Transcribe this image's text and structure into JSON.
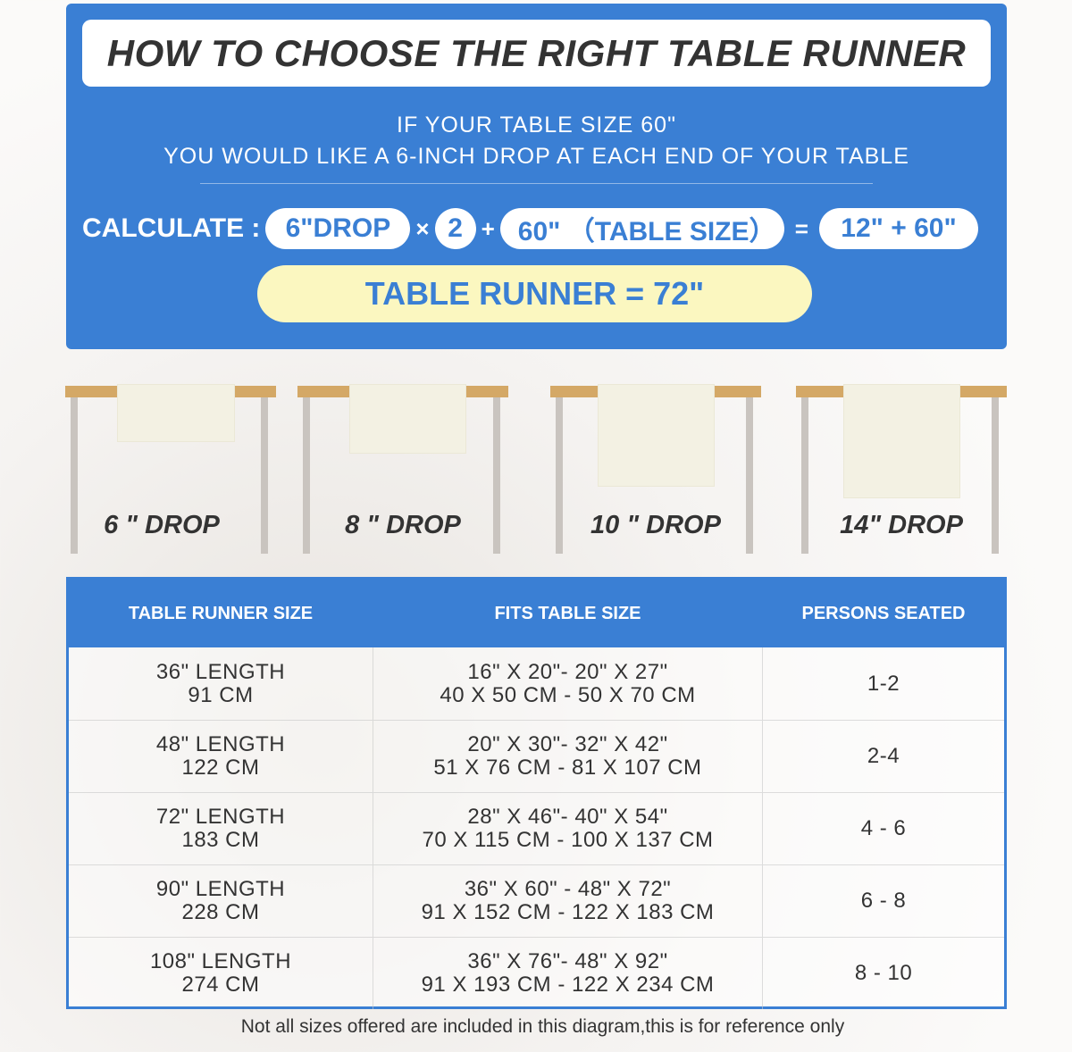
{
  "header": {
    "title": "HOW TO CHOOSE THE RIGHT TABLE RUNNER",
    "line1": "IF YOUR TABLE SIZE 60\"",
    "line2": "YOU WOULD LIKE A 6-INCH DROP AT EACH END OF YOUR TABLE"
  },
  "calc": {
    "label": "CALCULATE :",
    "drop": "6\"DROP",
    "times": "×",
    "multiplier": "2",
    "plus": "+",
    "table": "60\" （TABLE SIZE）",
    "equals": "=",
    "sum": "12\" + 60\"",
    "result": "TABLE RUNNER = 72\""
  },
  "drops": [
    {
      "label": "6 \" DROP"
    },
    {
      "label": "8 \" DROP"
    },
    {
      "label": "10 \" DROP"
    },
    {
      "label": "14\" DROP"
    }
  ],
  "table": {
    "headers": [
      "TABLE RUNNER SIZE",
      "FITS TABLE SIZE",
      "PERSONS SEATED"
    ],
    "rows": [
      {
        "runner": [
          "36\" LENGTH",
          "91 CM"
        ],
        "fits": [
          "16\" X 20\"- 20\" X 27\"",
          "40 X 50 CM - 50 X 70 CM"
        ],
        "persons": "1-2"
      },
      {
        "runner": [
          "48\" LENGTH",
          "122 CM"
        ],
        "fits": [
          "20\" X 30\"- 32\" X 42\"",
          "51 X 76 CM - 81 X 107 CM"
        ],
        "persons": "2-4"
      },
      {
        "runner": [
          "72\" LENGTH",
          "183 CM"
        ],
        "fits": [
          "28\" X 46\"- 40\" X 54\"",
          "70 X 115 CM - 100 X 137 CM"
        ],
        "persons": "4 - 6"
      },
      {
        "runner": [
          "90\" LENGTH",
          "228 CM"
        ],
        "fits": [
          "36\" X 60\" - 48\" X 72\"",
          "91 X 152 CM - 122 X 183 CM"
        ],
        "persons": "6 - 8"
      },
      {
        "runner": [
          "108\" LENGTH",
          "274 CM"
        ],
        "fits": [
          "36\" X 76\"- 48\" X 92\"",
          "91 X 193 CM - 122 X 234 CM"
        ],
        "persons": "8 - 10"
      }
    ]
  },
  "footer": "Not all sizes offered are included in this diagram,this is for reference only",
  "colors": {
    "accent": "#3a7fd4",
    "result_bg": "#fbf7c0",
    "tabletop": "#d4a866",
    "runner": "#f3f1e3"
  }
}
